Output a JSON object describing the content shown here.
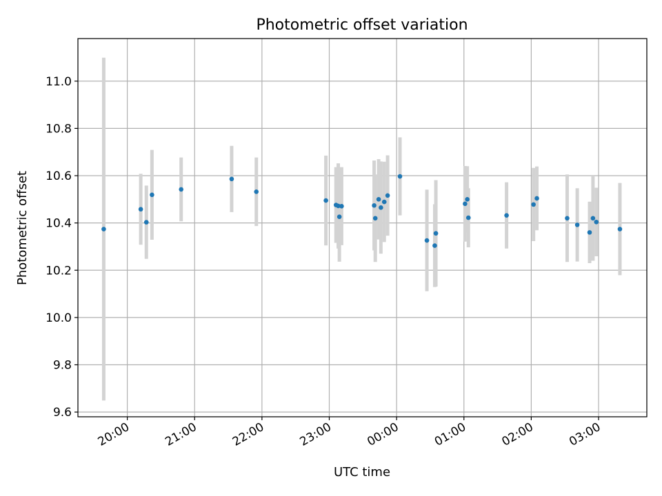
{
  "chart_data": {
    "type": "scatter",
    "title": "Photometric offset variation",
    "xlabel": "UTC time",
    "ylabel": "Photometric offset",
    "x_unit": "UTC time (HH:MM)",
    "xlim": [
      "19:16",
      "03:43"
    ],
    "ylim": [
      9.58,
      11.18
    ],
    "grid": true,
    "x_ticks": [
      "20:00",
      "21:00",
      "22:00",
      "23:00",
      "00:00",
      "01:00",
      "02:00",
      "03:00"
    ],
    "y_ticks": [
      9.6,
      9.8,
      10.0,
      10.2,
      10.4,
      10.6,
      10.8,
      11.0
    ],
    "y_tick_labels": [
      "9.6",
      "9.8",
      "10.0",
      "10.2",
      "10.4",
      "10.6",
      "10.8",
      "11.0"
    ],
    "marker_color": "#1f77b4",
    "errorbar_color": "#d3d3d3",
    "points": [
      {
        "x": "19:39",
        "y": 10.374,
        "yerr": 0.725
      },
      {
        "x": "20:12",
        "y": 10.458,
        "yerr": 0.15
      },
      {
        "x": "20:17",
        "y": 10.403,
        "yerr": 0.155
      },
      {
        "x": "20:22",
        "y": 10.519,
        "yerr": 0.19
      },
      {
        "x": "20:48",
        "y": 10.542,
        "yerr": 0.135
      },
      {
        "x": "21:33",
        "y": 10.586,
        "yerr": 0.14
      },
      {
        "x": "21:55",
        "y": 10.532,
        "yerr": 0.145
      },
      {
        "x": "22:57",
        "y": 10.495,
        "yerr": 0.19
      },
      {
        "x": "23:06",
        "y": 10.476,
        "yerr": 0.16
      },
      {
        "x": "23:08",
        "y": 10.472,
        "yerr": 0.18
      },
      {
        "x": "23:09",
        "y": 10.426,
        "yerr": 0.19
      },
      {
        "x": "23:11",
        "y": 10.471,
        "yerr": 0.165
      },
      {
        "x": "23:40",
        "y": 10.474,
        "yerr": 0.19
      },
      {
        "x": "23:41",
        "y": 10.42,
        "yerr": 0.185
      },
      {
        "x": "23:44",
        "y": 10.5,
        "yerr": 0.17
      },
      {
        "x": "23:46",
        "y": 10.465,
        "yerr": 0.195
      },
      {
        "x": "23:49",
        "y": 10.489,
        "yerr": 0.17
      },
      {
        "x": "23:52",
        "y": 10.516,
        "yerr": 0.17
      },
      {
        "x": "00:03",
        "y": 10.597,
        "yerr": 0.165
      },
      {
        "x": "00:27",
        "y": 10.326,
        "yerr": 0.215
      },
      {
        "x": "00:34",
        "y": 10.304,
        "yerr": 0.175
      },
      {
        "x": "00:35",
        "y": 10.356,
        "yerr": 0.225
      },
      {
        "x": "01:01",
        "y": 10.481,
        "yerr": 0.16
      },
      {
        "x": "01:03",
        "y": 10.5,
        "yerr": 0.14
      },
      {
        "x": "01:04",
        "y": 10.422,
        "yerr": 0.125
      },
      {
        "x": "01:38",
        "y": 10.432,
        "yerr": 0.14
      },
      {
        "x": "02:02",
        "y": 10.478,
        "yerr": 0.155
      },
      {
        "x": "02:05",
        "y": 10.504,
        "yerr": 0.135
      },
      {
        "x": "02:32",
        "y": 10.42,
        "yerr": 0.185
      },
      {
        "x": "02:41",
        "y": 10.392,
        "yerr": 0.155
      },
      {
        "x": "02:52",
        "y": 10.36,
        "yerr": 0.13
      },
      {
        "x": "02:55",
        "y": 10.42,
        "yerr": 0.18
      },
      {
        "x": "02:58",
        "y": 10.404,
        "yerr": 0.145
      },
      {
        "x": "03:19",
        "y": 10.374,
        "yerr": 0.195
      }
    ]
  }
}
